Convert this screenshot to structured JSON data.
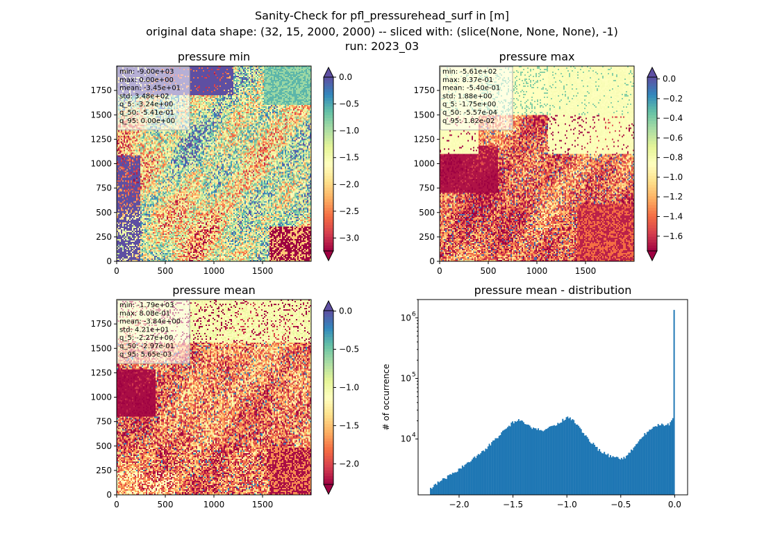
{
  "figure": {
    "title_lines": [
      "Sanity-Check for pfl_pressurehead_surf in [m]",
      "original data shape: (32, 15, 2000, 2000) -- sliced with: (slice(None, None, None), -1)",
      "run: 2023_03"
    ]
  },
  "chart_data": [
    {
      "type": "heatmap",
      "title": "pressure min",
      "xlim": [
        0,
        2000
      ],
      "ylim": [
        0,
        2000
      ],
      "xticks": [
        "0",
        "500",
        "1000",
        "1500"
      ],
      "yticks": [
        "0",
        "250",
        "500",
        "750",
        "1000",
        "1250",
        "1500",
        "1750"
      ],
      "colormap": "Spectral",
      "colorbar": {
        "vmin": -3.24,
        "vmax": 0.0,
        "extend": "both",
        "ticks": [
          "0.0",
          "−0.5",
          "−1.0",
          "−1.5",
          "−2.0",
          "−2.5",
          "−3.0"
        ]
      },
      "stats": [
        "min: -9.00e+03",
        "max: 0.00e+00",
        "mean: -3.45e+01",
        "std: 3.48e+02",
        "q_5: -3.24e+00",
        "q_50: -5.41e-01",
        "q_95: 0.00e+00"
      ]
    },
    {
      "type": "heatmap",
      "title": "pressure max",
      "xlim": [
        0,
        2000
      ],
      "ylim": [
        0,
        2000
      ],
      "xticks": [
        "0",
        "500",
        "1000",
        "1500"
      ],
      "yticks": [
        "0",
        "250",
        "500",
        "750",
        "1000",
        "1250",
        "1500",
        "1750"
      ],
      "colormap": "Spectral",
      "colorbar": {
        "vmin": -1.75,
        "vmax": 0.0182,
        "extend": "both",
        "ticks": [
          "0.0",
          "−0.2",
          "−0.4",
          "−0.6",
          "−0.8",
          "−1.0",
          "−1.2",
          "−1.4",
          "−1.6"
        ]
      },
      "stats": [
        "min: -5.61e+02",
        "max: 8.37e-01",
        "mean: -5.40e-01",
        "std: 1.88e+00",
        "q_5: -1.75e+00",
        "q_50: -5.57e-04",
        "q_95: 1.82e-02"
      ]
    },
    {
      "type": "heatmap",
      "title": "pressure mean",
      "xlim": [
        0,
        2000
      ],
      "ylim": [
        0,
        2000
      ],
      "xticks": [
        "0",
        "500",
        "1000",
        "1500"
      ],
      "yticks": [
        "0",
        "250",
        "500",
        "750",
        "1000",
        "1250",
        "1500",
        "1750"
      ],
      "colormap": "Spectral",
      "colorbar": {
        "vmin": -2.27,
        "vmax": 0.00565,
        "extend": "both",
        "ticks": [
          "0.0",
          "−0.5",
          "−1.0",
          "−1.5",
          "−2.0"
        ]
      },
      "stats": [
        "min: -1.79e+03",
        "max: 8.08e-01",
        "mean: -3.84e+00",
        "std: 4.21e+01",
        "q_5: -2.27e+00",
        "q_50: -2.97e-01",
        "q_95: 5.65e-03"
      ]
    },
    {
      "type": "bar",
      "title": "pressure mean - distribution",
      "xlabel": "",
      "ylabel": "# of occurrence",
      "yscale": "log",
      "xlim": [
        -2.38,
        0.12
      ],
      "ylim": [
        1200,
        2000000
      ],
      "xticks": [
        {
          "value": -2.0,
          "label": "−2.0"
        },
        {
          "value": -1.5,
          "label": "−1.5"
        },
        {
          "value": -1.0,
          "label": "−1.0"
        },
        {
          "value": -0.5,
          "label": "−0.5"
        },
        {
          "value": 0.0,
          "label": "0.0"
        }
      ],
      "yticks": [
        {
          "value": 10000,
          "label": "10",
          "exp": "4"
        },
        {
          "value": 100000,
          "label": "10",
          "exp": "5"
        },
        {
          "value": 1000000,
          "label": "10",
          "exp": "6"
        }
      ],
      "bar_color": "#1f77b4",
      "bin_range": [
        -2.27,
        0.0
      ],
      "anchors": [
        [
          -2.27,
          1500
        ],
        [
          -2.2,
          1900
        ],
        [
          -2.1,
          2400
        ],
        [
          -2.0,
          3200
        ],
        [
          -1.9,
          4300
        ],
        [
          -1.8,
          5800
        ],
        [
          -1.7,
          8500
        ],
        [
          -1.6,
          13000
        ],
        [
          -1.5,
          19000
        ],
        [
          -1.45,
          20500
        ],
        [
          -1.38,
          18000
        ],
        [
          -1.3,
          14500
        ],
        [
          -1.2,
          14000
        ],
        [
          -1.1,
          17500
        ],
        [
          -1.0,
          22500
        ],
        [
          -0.95,
          21500
        ],
        [
          -0.9,
          17000
        ],
        [
          -0.8,
          10000
        ],
        [
          -0.7,
          6500
        ],
        [
          -0.6,
          5200
        ],
        [
          -0.5,
          4700
        ],
        [
          -0.45,
          5000
        ],
        [
          -0.4,
          6500
        ],
        [
          -0.3,
          11000
        ],
        [
          -0.2,
          16000
        ],
        [
          -0.15,
          17000
        ],
        [
          -0.05,
          17500
        ],
        [
          -0.01,
          24000
        ],
        [
          0.0,
          1350000
        ]
      ]
    }
  ]
}
